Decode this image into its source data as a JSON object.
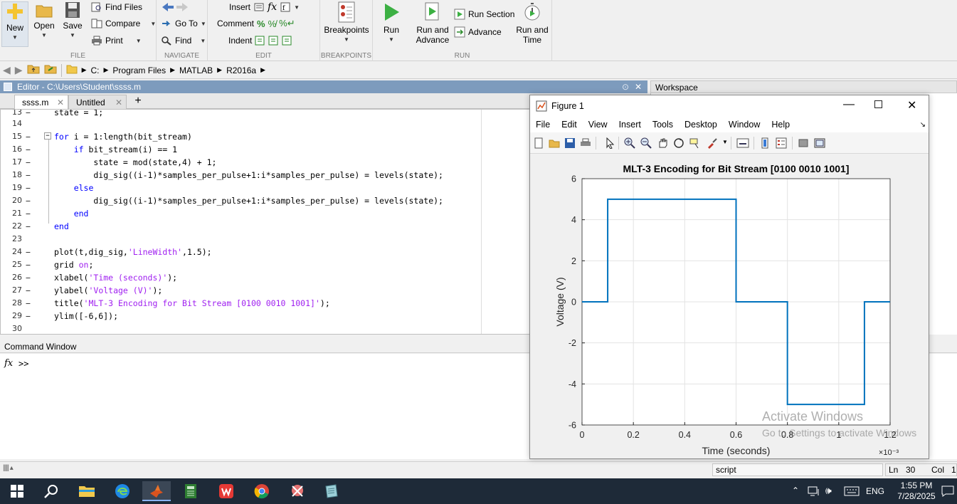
{
  "toolstrip": {
    "file": {
      "section_label": "FILE",
      "new_label": "New",
      "open_label": "Open",
      "save_label": "Save",
      "find_files_label": "Find Files",
      "compare_label": "Compare",
      "print_label": "Print"
    },
    "navigate": {
      "section_label": "NAVIGATE",
      "go_to_label": "Go To",
      "find_label": "Find"
    },
    "edit": {
      "section_label": "EDIT",
      "insert_label": "Insert",
      "comment_label": "Comment",
      "indent_label": "Indent",
      "fx_label": "fx"
    },
    "breakpoints": {
      "section_label": "BREAKPOINTS",
      "breakpoints_label": "Breakpoints"
    },
    "run": {
      "section_label": "RUN",
      "run_label": "Run",
      "run_and_advance_label_1": "Run and",
      "run_and_advance_label_2": "Advance",
      "run_section_label": "Run Section",
      "advance_label": "Advance",
      "run_and_time_label_1": "Run and",
      "run_and_time_label_2": "Time"
    }
  },
  "address": {
    "drive": "C:",
    "folders": [
      "Program Files",
      "MATLAB",
      "R2016a"
    ]
  },
  "editor": {
    "title": "Editor - C:\\Users\\Student\\ssss.m",
    "tabs": [
      {
        "label": "ssss.m"
      },
      {
        "label": "Untitled"
      }
    ],
    "lines": [
      {
        "num": "13",
        "text": "state = 1;"
      },
      {
        "num": "14",
        "text": ""
      },
      {
        "num": "15",
        "text": "for i = 1:length(bit_stream)"
      },
      {
        "num": "16",
        "text": "    if bit_stream(i) == 1"
      },
      {
        "num": "17",
        "text": "        state = mod(state,4) + 1;"
      },
      {
        "num": "18",
        "text": "        dig_sig((i-1)*samples_per_pulse+1:i*samples_per_pulse) = levels(state);"
      },
      {
        "num": "19",
        "text": "    else"
      },
      {
        "num": "20",
        "text": "        dig_sig((i-1)*samples_per_pulse+1:i*samples_per_pulse) = levels(state);"
      },
      {
        "num": "21",
        "text": "    end"
      },
      {
        "num": "22",
        "text": "end"
      },
      {
        "num": "23",
        "text": ""
      },
      {
        "num": "24",
        "text": "plot(t,dig_sig,'LineWidth',1.5);"
      },
      {
        "num": "25",
        "text": "grid on;"
      },
      {
        "num": "26",
        "text": "xlabel('Time (seconds)');"
      },
      {
        "num": "27",
        "text": "ylabel('Voltage (V)');"
      },
      {
        "num": "28",
        "text": "title('MLT-3 Encoding for Bit Stream [0100 0010 1001]');"
      },
      {
        "num": "29",
        "text": "ylim([-6,6]);"
      },
      {
        "num": "30",
        "text": ""
      }
    ]
  },
  "workspace": {
    "title": "Workspace"
  },
  "command_window": {
    "title": "Command Window",
    "fx_label": "fx",
    "prompt": ">>"
  },
  "statusbar": {
    "script_label": "script",
    "ln_label": "Ln",
    "ln_value": "30",
    "col_label": "Col",
    "col_value": "1"
  },
  "figure": {
    "title": "Figure 1",
    "menu": [
      "File",
      "Edit",
      "View",
      "Insert",
      "Tools",
      "Desktop",
      "Window",
      "Help"
    ],
    "watermark_line1": "Activate Windows",
    "watermark_line2": "Go to Settings to activate Windows"
  },
  "chart_data": {
    "type": "line",
    "title": "MLT-3 Encoding for Bit Stream [0100 0010 1001]",
    "xlabel": "Time (seconds)",
    "ylabel": "Voltage (V)",
    "x_exponent_label": "×10⁻³",
    "xlim": [
      0,
      1.2
    ],
    "ylim": [
      -6,
      6
    ],
    "xticks": [
      0,
      0.2,
      0.4,
      0.6,
      0.8,
      1,
      1.2
    ],
    "xtick_labels": [
      "0",
      "0.2",
      "0.4",
      "0.6",
      "0.8",
      "1",
      "1.2"
    ],
    "yticks": [
      -6,
      -4,
      -2,
      0,
      2,
      4,
      6
    ],
    "ytick_labels": [
      "-6",
      "-4",
      "-2",
      "0",
      "2",
      "4",
      "6"
    ],
    "grid": true,
    "series": [
      {
        "color": "#0072bd",
        "x": [
          0,
          0.1,
          0.1,
          0.6,
          0.6,
          0.8,
          0.8,
          1.1,
          1.1,
          1.2
        ],
        "y": [
          0,
          0,
          5,
          5,
          0,
          0,
          -5,
          -5,
          0,
          0
        ]
      }
    ]
  },
  "taskbar": {
    "language": "ENG",
    "time": "1:55 PM",
    "date": "7/28/2025"
  }
}
